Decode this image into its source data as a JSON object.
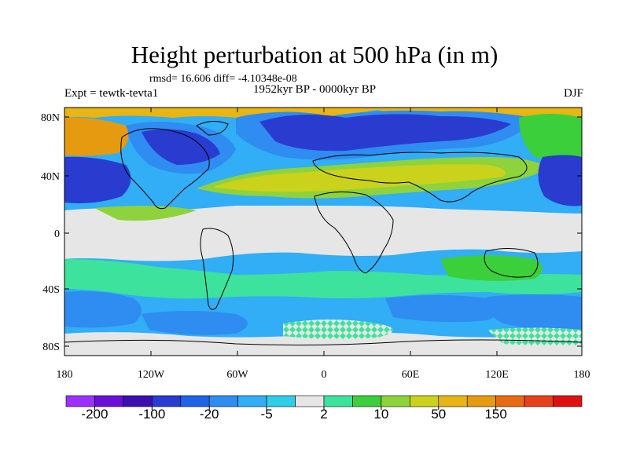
{
  "title": "Height perturbation at 500 hPa (in m)",
  "stats": "rmsd= 16.606 diff= -4.10348e-08",
  "left_label": "Expt = tewtk-tevta1",
  "center_label": "1952kyr BP - 0000kyr BP",
  "right_label": "DJF",
  "lat_ticks": [
    "80N",
    "40N",
    "0",
    "40S",
    "80S"
  ],
  "lon_ticks": [
    "180",
    "120W",
    "60W",
    "0",
    "60E",
    "120E",
    "180"
  ],
  "colorbar": {
    "colors": [
      "#9b30ff",
      "#6a0fd6",
      "#3c10b0",
      "#2a3bd0",
      "#1f63e6",
      "#2f8cf0",
      "#31aef5",
      "#2fcde8",
      "#e6e6e6",
      "#3de29c",
      "#3ccf3c",
      "#8ed23c",
      "#cbd21c",
      "#e8b512",
      "#e59a10",
      "#e86a14",
      "#e8401a",
      "#e01010"
    ],
    "labels": [
      "-200",
      "-100",
      "-20",
      "-5",
      "2",
      "10",
      "50",
      "150"
    ]
  }
}
